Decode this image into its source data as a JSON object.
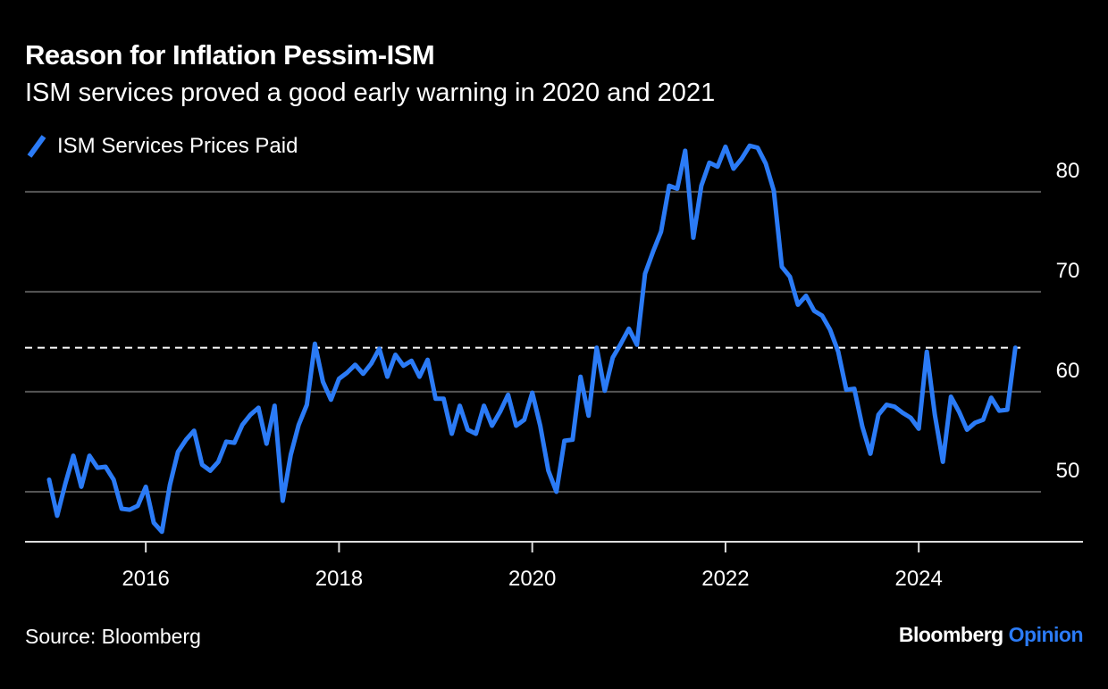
{
  "header": {
    "title": "Reason for Inflation Pessim-ISM",
    "subtitle": "ISM services proved a good early warning in 2020 and 2021"
  },
  "footer": {
    "source": "Source: Bloomberg",
    "brand_main": "Bloomberg",
    "brand_accent": "Opinion"
  },
  "chart_data": {
    "type": "line",
    "title": "Reason for Inflation Pessim-ISM",
    "subtitle": "ISM services proved a good early warning in 2020 and 2021",
    "xlabel": "",
    "ylabel": "",
    "xlim": [
      2014.75,
      2025.7
    ],
    "ylim": [
      45,
      84
    ],
    "y_ticks": [
      50,
      60,
      70,
      80
    ],
    "x_ticks": [
      {
        "value": 2016,
        "label": "2016"
      },
      {
        "value": 2018,
        "label": "2018"
      },
      {
        "value": 2020,
        "label": "2020"
      },
      {
        "value": 2022,
        "label": "2022"
      },
      {
        "value": 2024,
        "label": "2024"
      }
    ],
    "grid": true,
    "y_axis_side": "right",
    "legend_position": "top-left",
    "line_color": "#2b7bf6",
    "reference_line": {
      "value": 64.4,
      "style": "dashed",
      "color": "#ffffff"
    },
    "series": [
      {
        "name": "ISM Services Prices Paid",
        "x": [
          2015.0,
          2015.083,
          2015.167,
          2015.25,
          2015.333,
          2015.417,
          2015.5,
          2015.583,
          2015.667,
          2015.75,
          2015.833,
          2015.917,
          2016.0,
          2016.083,
          2016.167,
          2016.25,
          2016.333,
          2016.417,
          2016.5,
          2016.583,
          2016.667,
          2016.75,
          2016.833,
          2016.917,
          2017.0,
          2017.083,
          2017.167,
          2017.25,
          2017.333,
          2017.417,
          2017.5,
          2017.583,
          2017.667,
          2017.75,
          2017.833,
          2017.917,
          2018.0,
          2018.083,
          2018.167,
          2018.25,
          2018.333,
          2018.417,
          2018.5,
          2018.583,
          2018.667,
          2018.75,
          2018.833,
          2018.917,
          2019.0,
          2019.083,
          2019.167,
          2019.25,
          2019.333,
          2019.417,
          2019.5,
          2019.583,
          2019.667,
          2019.75,
          2019.833,
          2019.917,
          2020.0,
          2020.083,
          2020.167,
          2020.25,
          2020.333,
          2020.417,
          2020.5,
          2020.583,
          2020.667,
          2020.75,
          2020.833,
          2020.917,
          2021.0,
          2021.083,
          2021.167,
          2021.25,
          2021.333,
          2021.417,
          2021.5,
          2021.583,
          2021.667,
          2021.75,
          2021.833,
          2021.917,
          2022.0,
          2022.083,
          2022.167,
          2022.25,
          2022.333,
          2022.417,
          2022.5,
          2022.583,
          2022.667,
          2022.75,
          2022.833,
          2022.917,
          2023.0,
          2023.083,
          2023.167,
          2023.25,
          2023.333,
          2023.417,
          2023.5,
          2023.583,
          2023.667,
          2023.75,
          2023.833,
          2023.917,
          2024.0,
          2024.083,
          2024.167,
          2024.25,
          2024.333,
          2024.417,
          2024.5,
          2024.583,
          2024.667,
          2024.75,
          2024.833,
          2024.917,
          2025.0
        ],
        "values": [
          51.2,
          47.6,
          50.8,
          53.6,
          50.5,
          53.6,
          52.4,
          52.5,
          51.2,
          48.3,
          48.2,
          48.6,
          50.5,
          46.9,
          46.0,
          50.7,
          54.0,
          55.2,
          56.1,
          52.7,
          52.1,
          53.0,
          55.0,
          54.9,
          56.7,
          57.7,
          58.4,
          54.8,
          58.6,
          49.1,
          53.7,
          56.7,
          58.7,
          64.8,
          61.0,
          59.2,
          61.3,
          61.9,
          62.7,
          61.8,
          62.8,
          64.3,
          61.5,
          63.7,
          62.6,
          63.1,
          61.5,
          63.2,
          59.3,
          59.3,
          55.8,
          58.6,
          56.2,
          55.8,
          58.6,
          56.6,
          58.0,
          59.7,
          56.6,
          57.2,
          59.9,
          56.6,
          52.1,
          50.0,
          55.1,
          55.2,
          61.5,
          57.6,
          64.4,
          60.1,
          63.4,
          64.8,
          66.3,
          64.7,
          71.8,
          74.0,
          76.0,
          80.6,
          80.3,
          84.1,
          75.4,
          80.6,
          82.9,
          82.5,
          84.5,
          82.3,
          83.3,
          84.6,
          84.4,
          82.8,
          80.1,
          72.5,
          71.5,
          68.7,
          69.6,
          68.1,
          67.6,
          66.2,
          64.0,
          60.2,
          60.3,
          56.5,
          53.8,
          57.7,
          58.7,
          58.5,
          57.9,
          57.4,
          56.3,
          64.0,
          57.7,
          53.0,
          59.5,
          58.0,
          56.2,
          56.9,
          57.2,
          59.4,
          58.1,
          58.2,
          64.4
        ]
      }
    ]
  }
}
